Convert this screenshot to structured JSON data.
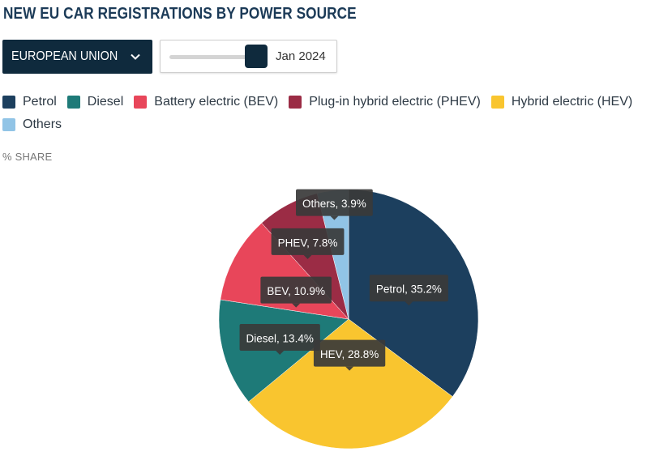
{
  "title": "NEW EU CAR REGISTRATIONS BY POWER SOURCE",
  "region_selector": {
    "label": "EUROPEAN UNION"
  },
  "date_slider": {
    "value": "Jan 2024",
    "position": 1.0
  },
  "unit_label": "% SHARE",
  "colors": {
    "Petrol": "#1c3f5e",
    "Diesel": "#1e7a78",
    "BEV": "#e8465a",
    "PHEV": "#9b2c45",
    "HEV": "#f9c52f",
    "Others": "#91c4e6"
  },
  "legend": [
    {
      "key": "Petrol",
      "label": "Petrol"
    },
    {
      "key": "Diesel",
      "label": "Diesel"
    },
    {
      "key": "BEV",
      "label": "Battery electric (BEV)"
    },
    {
      "key": "PHEV",
      "label": "Plug-in hybrid electric (PHEV)"
    },
    {
      "key": "HEV",
      "label": "Hybrid electric (HEV)"
    },
    {
      "key": "Others",
      "label": "Others"
    }
  ],
  "chart_data": {
    "type": "pie",
    "start_angle_deg": 0,
    "direction": "clockwise",
    "slices": [
      {
        "key": "Petrol",
        "value": 35.2,
        "label": "Petrol, 35.2%"
      },
      {
        "key": "HEV",
        "value": 28.8,
        "label": "HEV, 28.8%"
      },
      {
        "key": "Diesel",
        "value": 13.4,
        "label": "Diesel, 13.4%"
      },
      {
        "key": "BEV",
        "value": 10.9,
        "label": "BEV, 10.9%"
      },
      {
        "key": "PHEV",
        "value": 7.8,
        "label": "PHEV, 7.8%"
      },
      {
        "key": "Others",
        "value": 3.9,
        "label": "Others, 3.9%"
      }
    ]
  }
}
